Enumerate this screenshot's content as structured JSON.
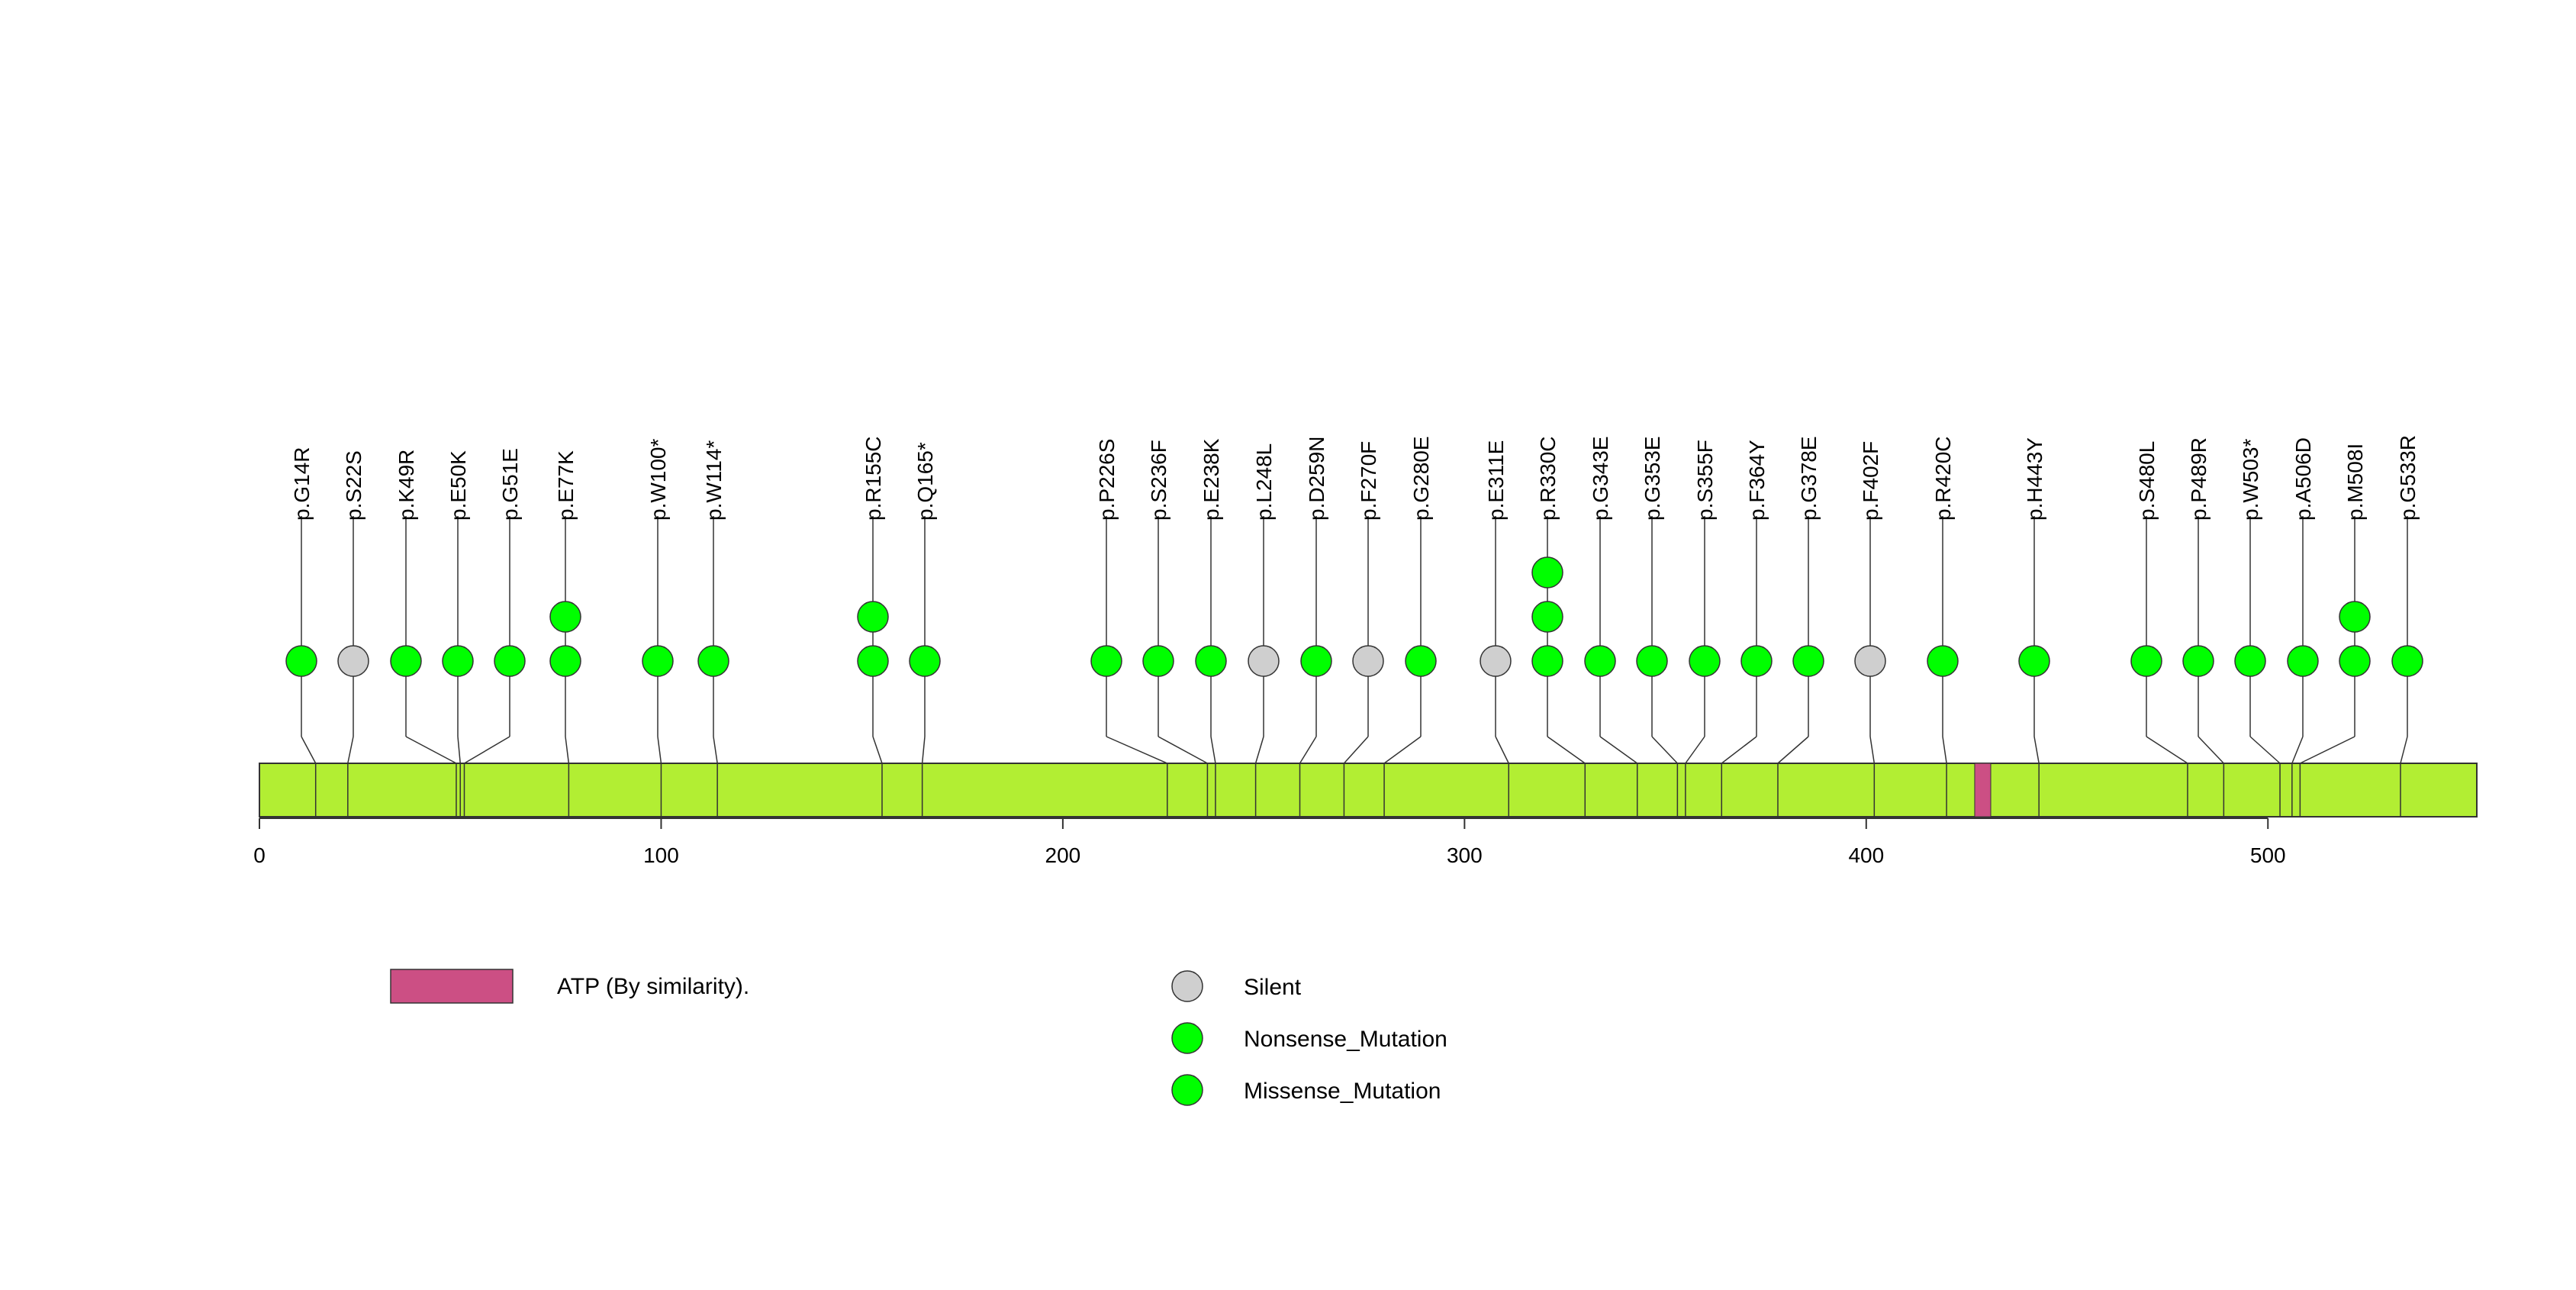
{
  "chart_data": {
    "type": "lollipop",
    "title": "",
    "xlabel": "",
    "ylabel": "",
    "protein_length": 552,
    "xlim": [
      0,
      552
    ],
    "x_ticks": [
      0,
      100,
      200,
      300,
      400,
      500
    ],
    "x_tick_labels": [
      "0",
      "100",
      "200",
      "300",
      "400",
      "500"
    ],
    "domains": [
      {
        "name": "ATP (By similarity).",
        "start": 427,
        "end": 431
      }
    ],
    "mutations": [
      {
        "label": "p.G14R",
        "position": 14,
        "count": 1,
        "type": "Missense_Mutation"
      },
      {
        "label": "p.S22S",
        "position": 22,
        "count": 1,
        "type": "Silent"
      },
      {
        "label": "p.K49R",
        "position": 49,
        "count": 1,
        "type": "Missense_Mutation"
      },
      {
        "label": "p.E50K",
        "position": 50,
        "count": 1,
        "type": "Missense_Mutation"
      },
      {
        "label": "p.G51E",
        "position": 51,
        "count": 1,
        "type": "Missense_Mutation"
      },
      {
        "label": "p.E77K",
        "position": 77,
        "count": 2,
        "type": "Missense_Mutation"
      },
      {
        "label": "p.W100*",
        "position": 100,
        "count": 1,
        "type": "Nonsense_Mutation"
      },
      {
        "label": "p.W114*",
        "position": 114,
        "count": 1,
        "type": "Nonsense_Mutation"
      },
      {
        "label": "p.R155C",
        "position": 155,
        "count": 2,
        "type": "Missense_Mutation"
      },
      {
        "label": "p.Q165*",
        "position": 165,
        "count": 1,
        "type": "Nonsense_Mutation"
      },
      {
        "label": "p.P226S",
        "position": 226,
        "count": 1,
        "type": "Missense_Mutation"
      },
      {
        "label": "p.S236F",
        "position": 236,
        "count": 1,
        "type": "Missense_Mutation"
      },
      {
        "label": "p.E238K",
        "position": 238,
        "count": 1,
        "type": "Missense_Mutation"
      },
      {
        "label": "p.L248L",
        "position": 248,
        "count": 1,
        "type": "Silent"
      },
      {
        "label": "p.D259N",
        "position": 259,
        "count": 1,
        "type": "Missense_Mutation"
      },
      {
        "label": "p.F270F",
        "position": 270,
        "count": 1,
        "type": "Silent"
      },
      {
        "label": "p.G280E",
        "position": 280,
        "count": 1,
        "type": "Missense_Mutation"
      },
      {
        "label": "p.E311E",
        "position": 311,
        "count": 1,
        "type": "Silent"
      },
      {
        "label": "p.R330C",
        "position": 330,
        "count": 3,
        "type": "Missense_Mutation"
      },
      {
        "label": "p.G343E",
        "position": 343,
        "count": 1,
        "type": "Missense_Mutation"
      },
      {
        "label": "p.G353E",
        "position": 353,
        "count": 1,
        "type": "Missense_Mutation"
      },
      {
        "label": "p.S355F",
        "position": 355,
        "count": 1,
        "type": "Missense_Mutation"
      },
      {
        "label": "p.F364Y",
        "position": 364,
        "count": 1,
        "type": "Missense_Mutation"
      },
      {
        "label": "p.G378E",
        "position": 378,
        "count": 1,
        "type": "Missense_Mutation"
      },
      {
        "label": "p.F402F",
        "position": 402,
        "count": 1,
        "type": "Silent"
      },
      {
        "label": "p.R420C",
        "position": 420,
        "count": 1,
        "type": "Missense_Mutation"
      },
      {
        "label": "p.H443Y",
        "position": 443,
        "count": 1,
        "type": "Missense_Mutation"
      },
      {
        "label": "p.S480L",
        "position": 480,
        "count": 1,
        "type": "Missense_Mutation"
      },
      {
        "label": "p.P489R",
        "position": 489,
        "count": 1,
        "type": "Missense_Mutation"
      },
      {
        "label": "p.W503*",
        "position": 503,
        "count": 1,
        "type": "Nonsense_Mutation"
      },
      {
        "label": "p.A506D",
        "position": 506,
        "count": 1,
        "type": "Missense_Mutation"
      },
      {
        "label": "p.M508I",
        "position": 508,
        "count": 2,
        "type": "Missense_Mutation"
      },
      {
        "label": "p.G533R",
        "position": 533,
        "count": 1,
        "type": "Missense_Mutation"
      }
    ],
    "legend": {
      "domain_entries": [
        {
          "label": "ATP (By similarity).",
          "color": "#cc4f84"
        }
      ],
      "mutation_entries": [
        {
          "label": "Silent",
          "color": "#cfcfcf"
        },
        {
          "label": "Nonsense_Mutation",
          "color": "#00ff00"
        },
        {
          "label": "Missense_Mutation",
          "color": "#00ff00"
        }
      ]
    },
    "colors": {
      "protein_bar": "#b2ee33",
      "domain": "#cc4f84",
      "silent": "#cfcfcf",
      "nonsense": "#00ff00",
      "missense": "#00ff00",
      "stroke": "#333333"
    }
  }
}
